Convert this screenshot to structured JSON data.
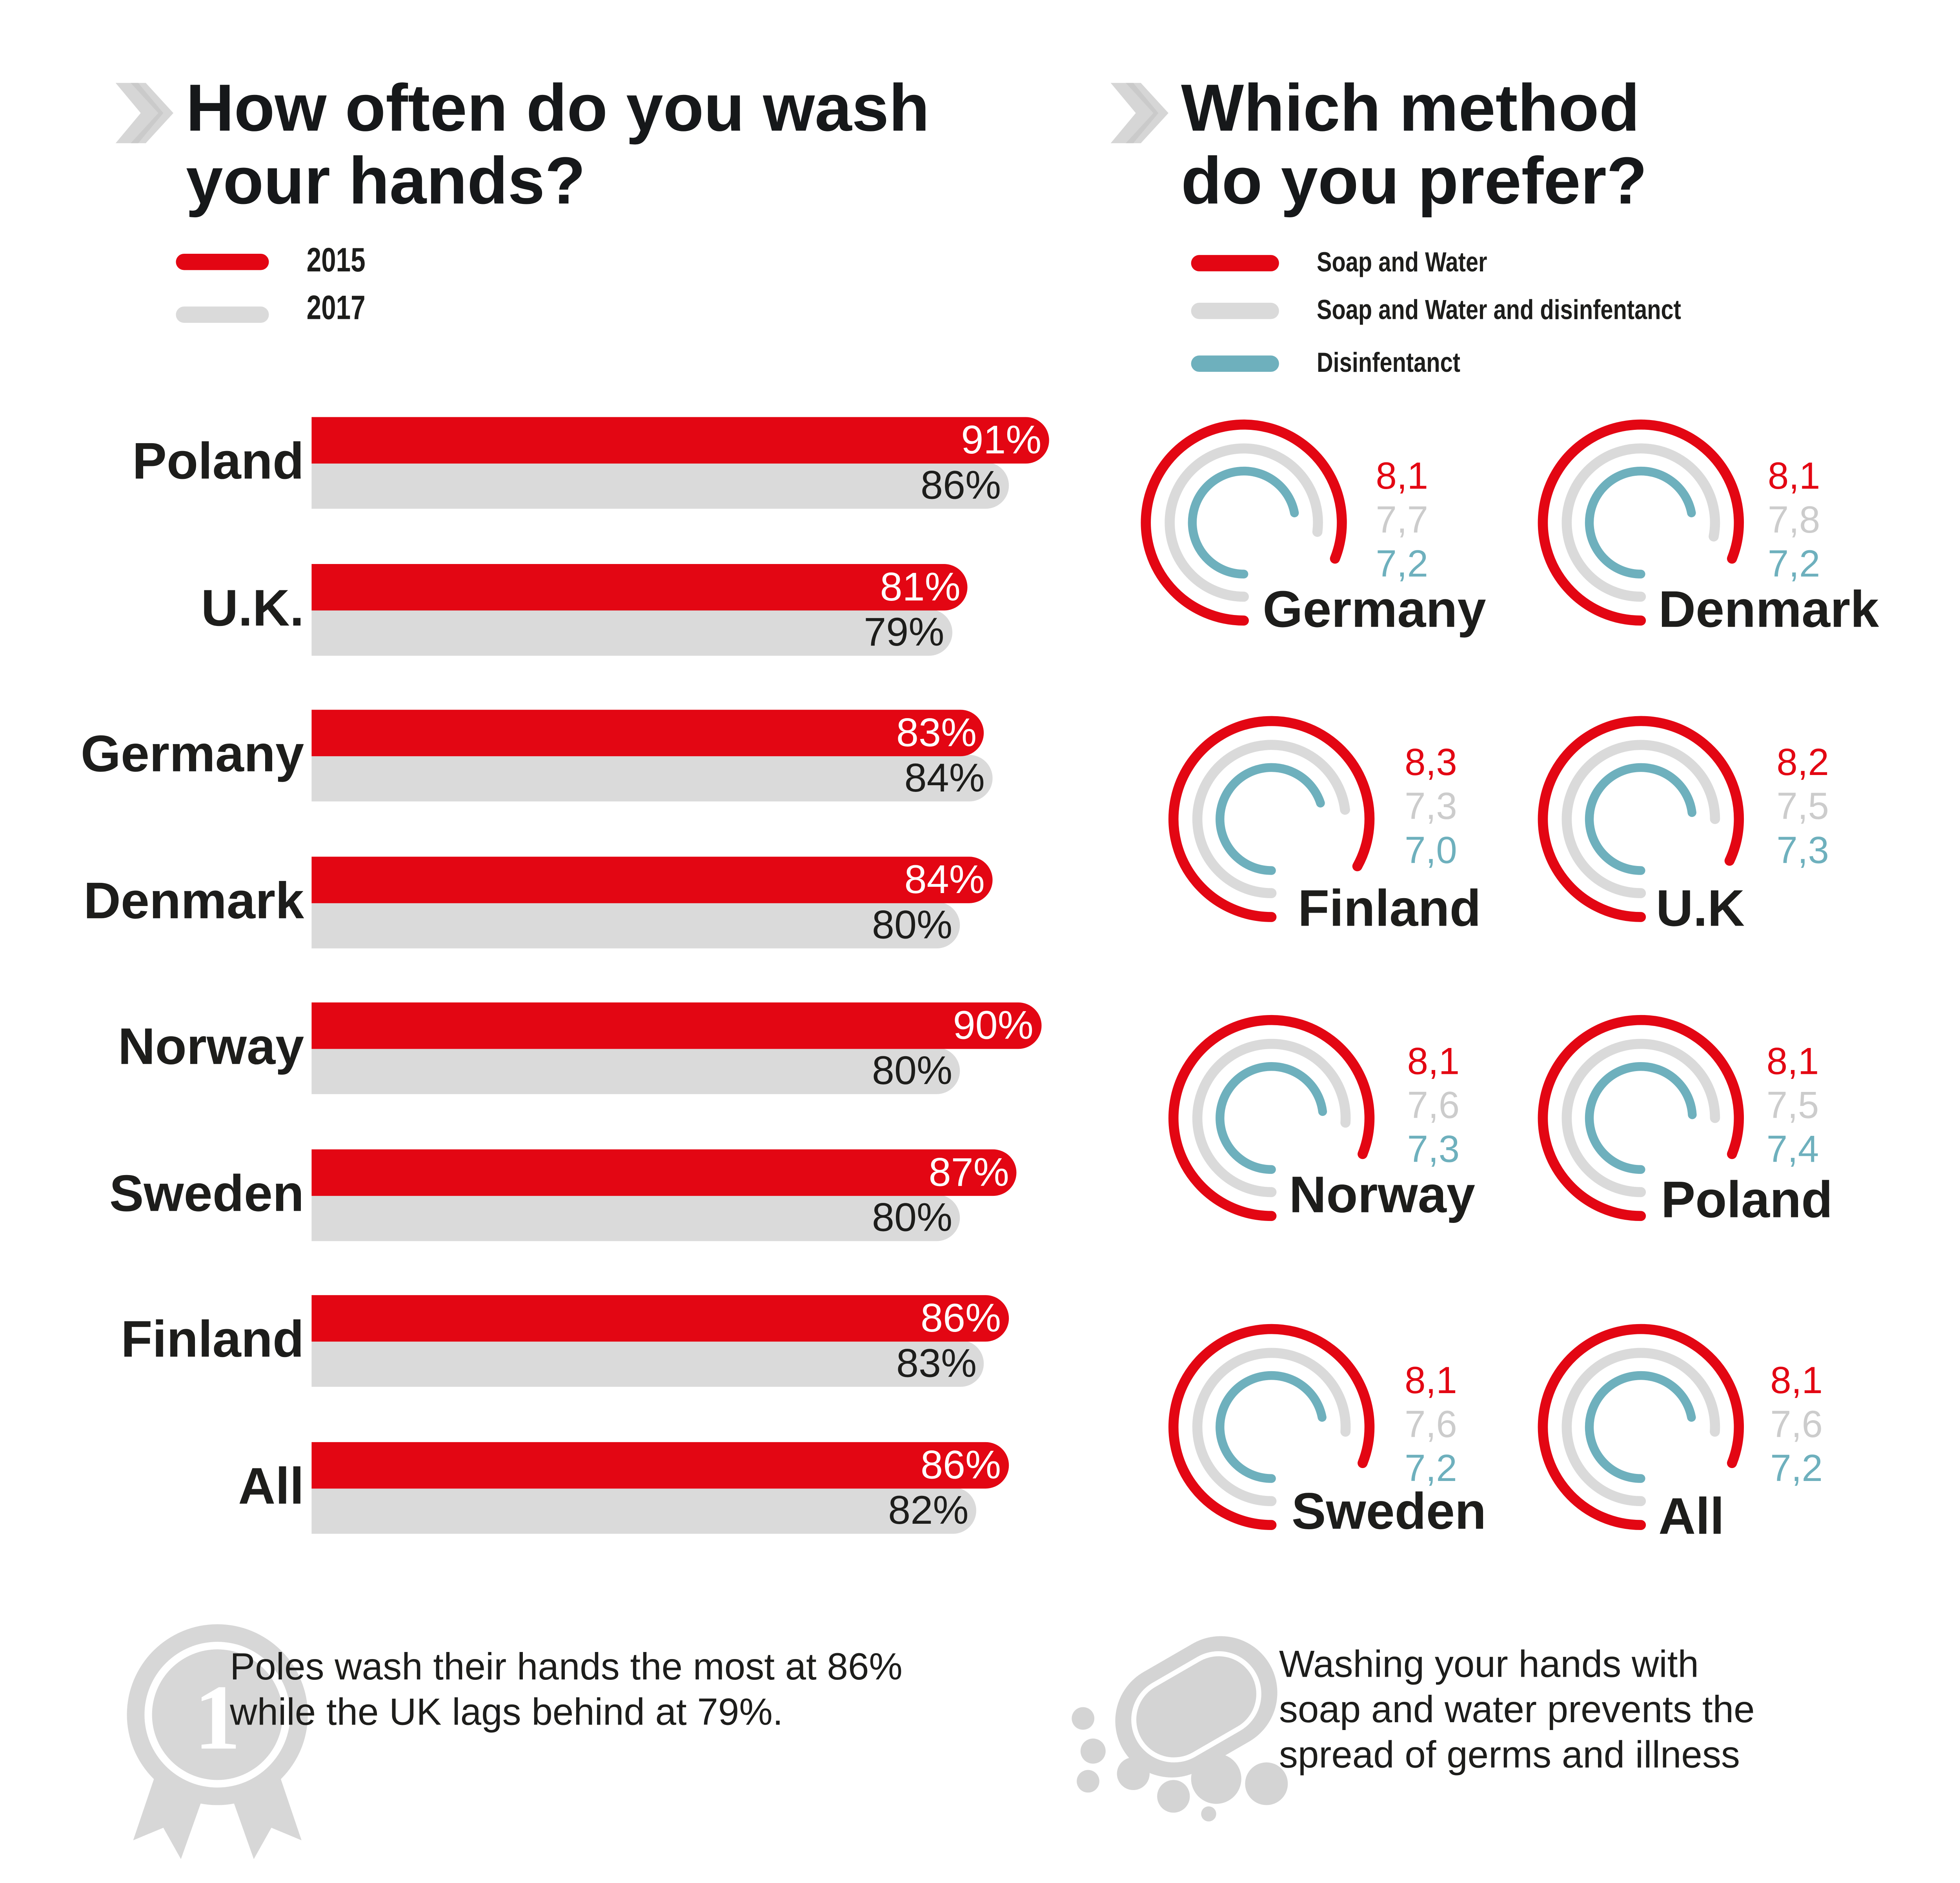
{
  "colors": {
    "red": "#e30613",
    "gray": "#dadada",
    "teal": "#6eb0bd",
    "text": "#1d1d1b",
    "gray_value_text": "#cccccc"
  },
  "left": {
    "title_line1": "How often do you wash",
    "title_line2": "your hands?",
    "icon": "chevron-right-icon",
    "legend": [
      "2015",
      "2017"
    ]
  },
  "right": {
    "title_line1": "Which method",
    "title_line2": "do you prefer?",
    "icon": "chevron-right-icon",
    "legend": [
      "Soap and Water",
      "Soap and Water and disinfentanct",
      "Disinfentanct"
    ]
  },
  "chart_data": [
    {
      "type": "bar",
      "orientation": "horizontal",
      "categories": [
        "Poland",
        "U.K.",
        "Germany",
        "Denmark",
        "Norway",
        "Sweden",
        "Finland",
        "All"
      ],
      "series": [
        {
          "name": "2015",
          "values": [
            91,
            81,
            83,
            84,
            90,
            87,
            86,
            86
          ],
          "labels": [
            "91%",
            "81%",
            "83%",
            "84%",
            "90%",
            "87%",
            "86%",
            "86%"
          ]
        },
        {
          "name": "2017",
          "values": [
            86,
            79,
            84,
            80,
            80,
            80,
            83,
            82
          ],
          "labels": [
            "86%",
            "79%",
            "84%",
            "80%",
            "80%",
            "80%",
            "83%",
            "82%"
          ]
        }
      ],
      "xlim": [
        0,
        100
      ]
    },
    {
      "type": "radial",
      "categories": [
        "Germany",
        "Denmark",
        "Finland",
        "U.K",
        "Norway",
        "Poland",
        "Sweden",
        "All"
      ],
      "series": [
        {
          "name": "Soap and Water",
          "values": [
            8.1,
            8.1,
            8.3,
            8.2,
            8.1,
            8.1,
            8.1,
            8.1
          ],
          "labels": [
            "8,1",
            "8,1",
            "8,3",
            "8,2",
            "8,1",
            "8,1",
            "8,1",
            "8,1"
          ]
        },
        {
          "name": "Soap and Water and disinfentanct",
          "values": [
            7.7,
            7.8,
            7.3,
            7.5,
            7.6,
            7.5,
            7.6,
            7.6
          ],
          "labels": [
            "7,7",
            "7,8",
            "7,3",
            "7,5",
            "7,6",
            "7,5",
            "7,6",
            "7,6"
          ]
        },
        {
          "name": "Disinfentanct",
          "values": [
            7.2,
            7.2,
            7.0,
            7.3,
            7.3,
            7.4,
            7.2,
            7.2
          ],
          "labels": [
            "7,2",
            "7,2",
            "7,0",
            "7,3",
            "7,3",
            "7,4",
            "7,2",
            "7,2"
          ]
        }
      ]
    }
  ],
  "notes": {
    "left_line1": "Poles wash their hands the most at 86%",
    "left_line2": "while the UK lags behind at 79%.",
    "left_icon": "award-ribbon-icon",
    "left_icon_text": "1",
    "right_line1": "Washing your hands with",
    "right_line2": "soap and water prevents the",
    "right_line3": "spread of germs and illness",
    "right_icon": "soap-bubbles-icon"
  }
}
